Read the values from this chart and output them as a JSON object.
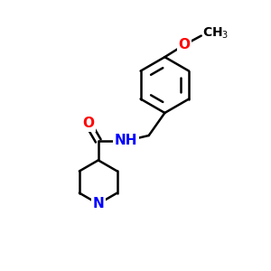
{
  "background_color": "#ffffff",
  "bond_color": "#000000",
  "bond_width": 1.8,
  "atom_colors": {
    "O": "#ff0000",
    "N": "#0000ff",
    "C": "#000000"
  },
  "font_size_atom": 11,
  "font_size_ch3": 10,
  "figsize": [
    3.0,
    3.0
  ],
  "dpi": 100,
  "xlim": [
    0,
    10
  ],
  "ylim": [
    0,
    10
  ]
}
